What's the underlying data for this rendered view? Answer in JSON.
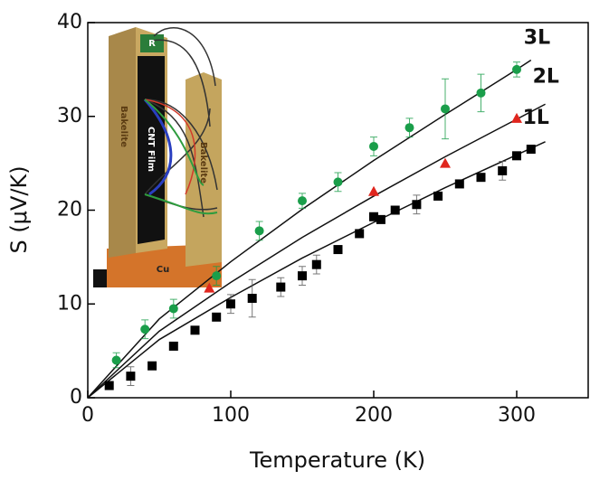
{
  "chart_data": {
    "type": "scatter",
    "x_label": "Temperature (K)",
    "y_label": "S (μV/K)",
    "xlim": [
      0,
      350
    ],
    "ylim": [
      0,
      40
    ],
    "xticks": [
      0,
      100,
      200,
      300
    ],
    "yticks": [
      0,
      10,
      20,
      30,
      40
    ],
    "series": [
      {
        "name": "3L",
        "color": "#1a9e4a",
        "marker": "circle",
        "x": [
          20,
          40,
          60,
          90,
          120,
          150,
          175,
          200,
          225,
          250,
          275,
          300
        ],
        "values": [
          4,
          7.3,
          9.5,
          13,
          17.8,
          21,
          23,
          26.8,
          28.8,
          30.8,
          32.5,
          35
        ],
        "errors": [
          0.8,
          1,
          1,
          1,
          1,
          0.8,
          1,
          1,
          1,
          3.2,
          2,
          0.8
        ],
        "fit_x": [
          0,
          50,
          100,
          150,
          200,
          250,
          300,
          310
        ],
        "fit_values": [
          0,
          8.4,
          14.5,
          20.1,
          25.3,
          30.2,
          35.0,
          36.0
        ]
      },
      {
        "name": "2L",
        "color": "#e0261e",
        "marker": "triangle",
        "x": [
          85,
          200,
          250,
          300
        ],
        "values": [
          11.7,
          22,
          25,
          29.8
        ],
        "fit_x": [
          0,
          50,
          100,
          150,
          200,
          250,
          300,
          320
        ],
        "fit_values": [
          0,
          7.1,
          12.3,
          17.1,
          21.5,
          25.7,
          29.7,
          31.3
        ]
      },
      {
        "name": "1L",
        "color": "#000000",
        "marker": "square",
        "x": [
          15,
          30,
          45,
          60,
          75,
          90,
          100,
          115,
          135,
          150,
          160,
          175,
          190,
          200,
          205,
          215,
          230,
          245,
          260,
          275,
          290,
          300,
          310
        ],
        "values": [
          1.3,
          2.3,
          3.4,
          5.5,
          7.2,
          8.6,
          10,
          10.6,
          11.8,
          13,
          14.2,
          15.8,
          17.5,
          19.3,
          19,
          20,
          20.6,
          21.5,
          22.8,
          23.5,
          24.2,
          25.8,
          26.5
        ],
        "errors": [
          null,
          1,
          null,
          null,
          null,
          null,
          1,
          2,
          1,
          1,
          1,
          null,
          null,
          null,
          null,
          null,
          1,
          null,
          null,
          null,
          1,
          null,
          null
        ],
        "fit_x": [
          0,
          50,
          100,
          150,
          200,
          250,
          300,
          320
        ],
        "fit_values": [
          0,
          6.2,
          10.7,
          14.9,
          18.7,
          22.4,
          25.9,
          27.3
        ]
      }
    ],
    "inset": {
      "labels": [
        "R",
        "Bakelite",
        "CNT Film",
        "Cu",
        "Bakelite"
      ]
    }
  }
}
